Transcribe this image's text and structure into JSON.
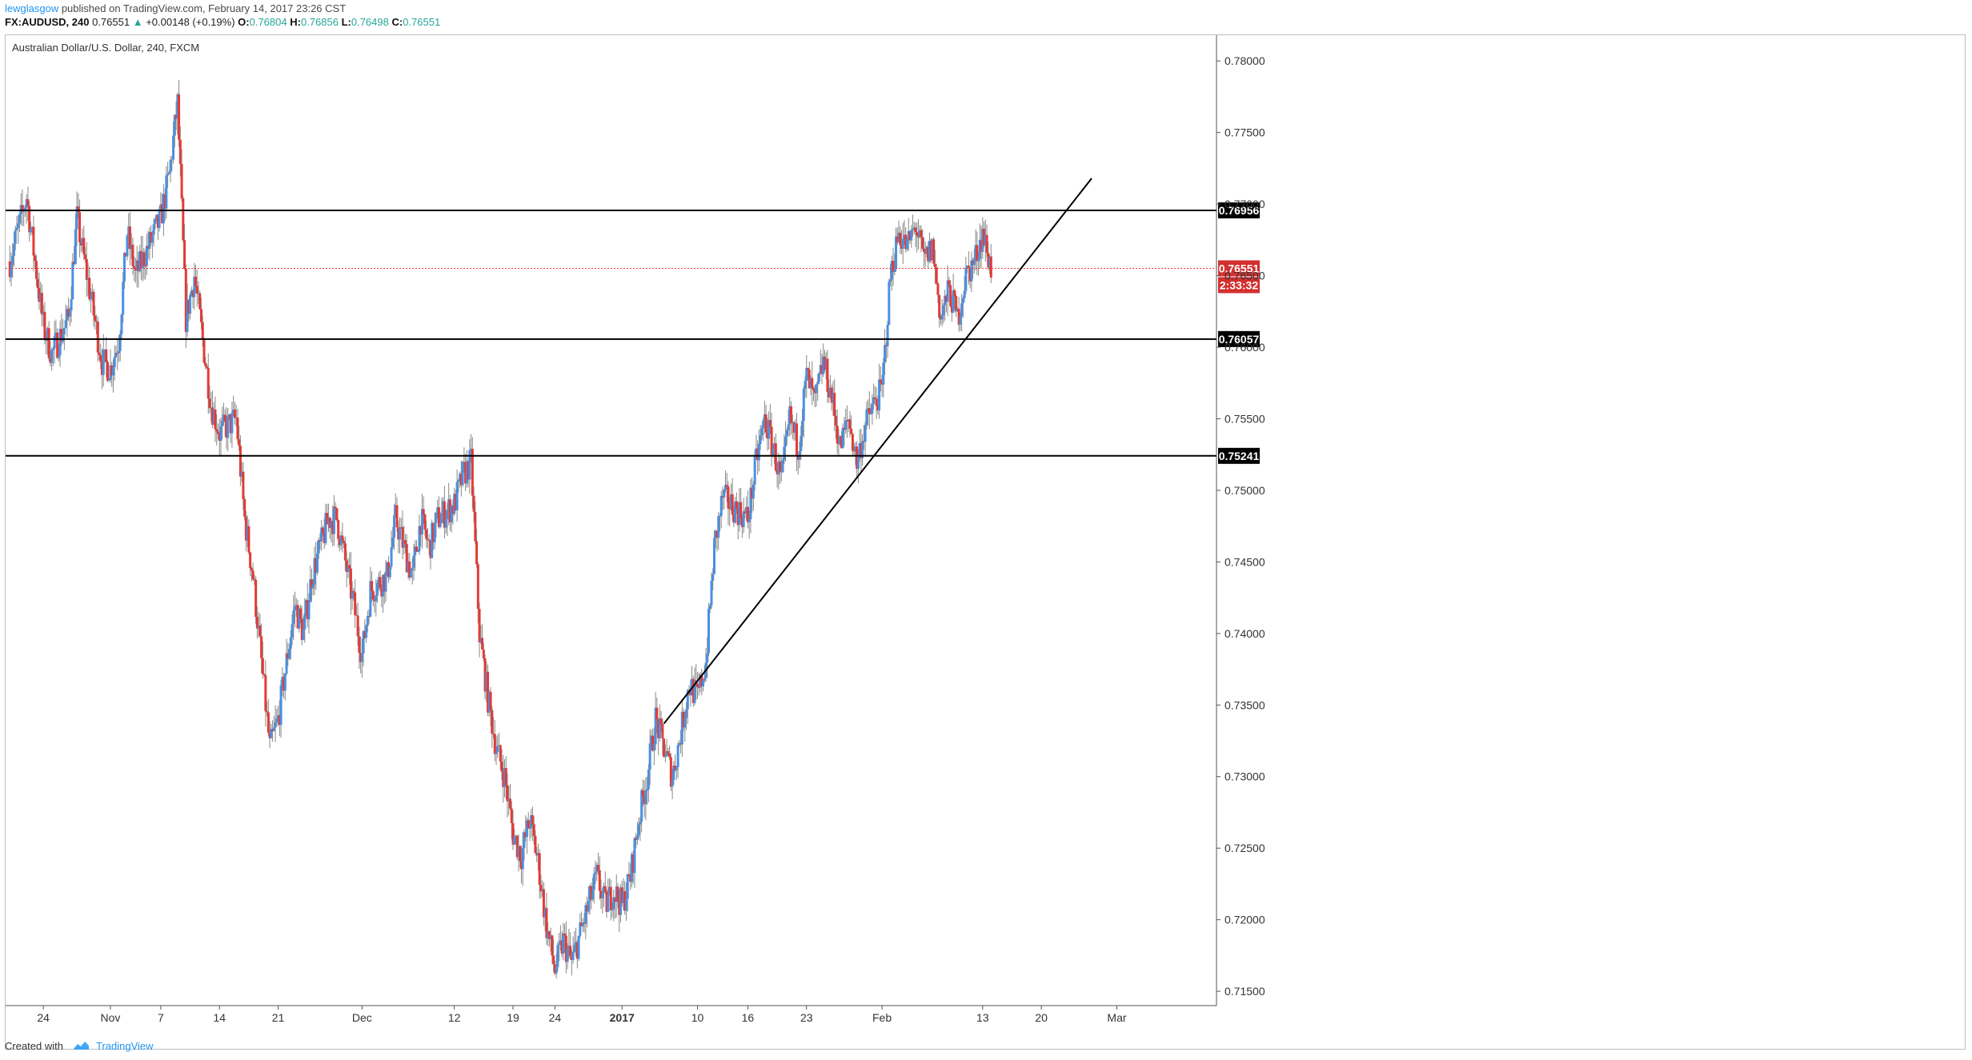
{
  "header": {
    "author": "lewglasgow",
    "published_text": "published on TradingView.com, February 14, 2017 23:26 CST",
    "symbol_line": {
      "symbol": "FX:AUDUSD, 240",
      "last": "0.76551",
      "change": "+0.00148 (+0.19%)",
      "open_label": "O:",
      "open": "0.76804",
      "high_label": "H:",
      "high": "0.76856",
      "low_label": "L:",
      "low": "0.76498",
      "close_label": "C:",
      "close": "0.76551"
    }
  },
  "footer": {
    "created_with": "Created with",
    "brand": "TradingView"
  },
  "colors": {
    "up": "#4a90e2",
    "down": "#e53935",
    "price_line": "#e53935",
    "level_line": "#000000",
    "label_bg_level": "#000000",
    "label_bg_price": "#d32f2f"
  },
  "chart_data": {
    "type": "candlestick",
    "title": "Australian Dollar/U.S. Dollar, 240, FXCM",
    "ylim": [
      0.714,
      0.7818
    ],
    "y_ticks": [
      "0.78000",
      "0.77500",
      "0.77000",
      "0.76500",
      "0.76000",
      "0.75500",
      "0.75000",
      "0.74500",
      "0.74000",
      "0.73500",
      "0.73000",
      "0.72500",
      "0.72000",
      "0.71500"
    ],
    "y_tick_values": [
      0.78,
      0.775,
      0.77,
      0.765,
      0.76,
      0.755,
      0.75,
      0.745,
      0.74,
      0.735,
      0.73,
      0.725,
      0.72,
      0.715
    ],
    "x_ticks": [
      {
        "label": "24",
        "date": "2016-10-24"
      },
      {
        "label": "Nov",
        "date": "2016-11-01"
      },
      {
        "label": "7",
        "date": "2016-11-07"
      },
      {
        "label": "14",
        "date": "2016-11-14"
      },
      {
        "label": "21",
        "date": "2016-11-21"
      },
      {
        "label": "Dec",
        "date": "2016-12-01"
      },
      {
        "label": "12",
        "date": "2016-12-12"
      },
      {
        "label": "19",
        "date": "2016-12-19"
      },
      {
        "label": "24",
        "date": "2016-12-24"
      },
      {
        "label": "2017",
        "date": "2017-01-01"
      },
      {
        "label": "10",
        "date": "2017-01-10"
      },
      {
        "label": "16",
        "date": "2017-01-16"
      },
      {
        "label": "23",
        "date": "2017-01-23"
      },
      {
        "label": "Feb",
        "date": "2017-02-01"
      },
      {
        "label": "13",
        "date": "2017-02-13"
      },
      {
        "label": "20",
        "date": "2017-02-20"
      },
      {
        "label": "Mar",
        "date": "2017-03-01"
      }
    ],
    "horizontal_levels": [
      {
        "value": 0.76956,
        "label": "0.76956"
      },
      {
        "value": 0.76057,
        "label": "0.76057"
      },
      {
        "value": 0.75241,
        "label": "0.75241"
      }
    ],
    "last_price": {
      "value": 0.76551,
      "label": "0.76551",
      "countdown": "2:33:32"
    },
    "trendline": {
      "from": {
        "date": "2017-01-06",
        "price": 0.7337
      },
      "to": {
        "date": "2017-02-26",
        "price": 0.7718
      }
    },
    "close_path": [
      {
        "date": "2016-10-20",
        "price": 0.766
      },
      {
        "date": "2016-10-22",
        "price": 0.7705
      },
      {
        "date": "2016-10-24",
        "price": 0.7615
      },
      {
        "date": "2016-10-25",
        "price": 0.7595
      },
      {
        "date": "2016-10-27",
        "price": 0.762
      },
      {
        "date": "2016-10-28",
        "price": 0.769
      },
      {
        "date": "2016-10-31",
        "price": 0.759
      },
      {
        "date": "2016-11-01",
        "price": 0.7585
      },
      {
        "date": "2016-11-02",
        "price": 0.7605
      },
      {
        "date": "2016-11-03",
        "price": 0.768
      },
      {
        "date": "2016-11-04",
        "price": 0.765
      },
      {
        "date": "2016-11-07",
        "price": 0.769
      },
      {
        "date": "2016-11-08",
        "price": 0.772
      },
      {
        "date": "2016-11-09",
        "price": 0.777
      },
      {
        "date": "2016-11-10",
        "price": 0.762
      },
      {
        "date": "2016-11-11",
        "price": 0.765
      },
      {
        "date": "2016-11-13",
        "price": 0.756
      },
      {
        "date": "2016-11-14",
        "price": 0.754
      },
      {
        "date": "2016-11-16",
        "price": 0.755
      },
      {
        "date": "2016-11-17",
        "price": 0.748
      },
      {
        "date": "2016-11-18",
        "price": 0.744
      },
      {
        "date": "2016-11-20",
        "price": 0.732
      },
      {
        "date": "2016-11-21",
        "price": 0.734
      },
      {
        "date": "2016-11-23",
        "price": 0.742
      },
      {
        "date": "2016-11-24",
        "price": 0.74
      },
      {
        "date": "2016-11-25",
        "price": 0.744
      },
      {
        "date": "2016-11-27",
        "price": 0.748
      },
      {
        "date": "2016-11-28",
        "price": 0.748
      },
      {
        "date": "2016-11-30",
        "price": 0.742
      },
      {
        "date": "2016-12-01",
        "price": 0.7385
      },
      {
        "date": "2016-12-02",
        "price": 0.743
      },
      {
        "date": "2016-12-04",
        "price": 0.744
      },
      {
        "date": "2016-12-05",
        "price": 0.748
      },
      {
        "date": "2016-12-07",
        "price": 0.744
      },
      {
        "date": "2016-12-08",
        "price": 0.748
      },
      {
        "date": "2016-12-09",
        "price": 0.746
      },
      {
        "date": "2016-12-10",
        "price": 0.748
      },
      {
        "date": "2016-12-12",
        "price": 0.749
      },
      {
        "date": "2016-12-13",
        "price": 0.751
      },
      {
        "date": "2016-12-14",
        "price": 0.752
      },
      {
        "date": "2016-12-15",
        "price": 0.74
      },
      {
        "date": "2016-12-16",
        "price": 0.7355
      },
      {
        "date": "2016-12-17",
        "price": 0.732
      },
      {
        "date": "2016-12-18",
        "price": 0.73
      },
      {
        "date": "2016-12-19",
        "price": 0.726
      },
      {
        "date": "2016-12-20",
        "price": 0.7245
      },
      {
        "date": "2016-12-21",
        "price": 0.727
      },
      {
        "date": "2016-12-22",
        "price": 0.724
      },
      {
        "date": "2016-12-23",
        "price": 0.7195
      },
      {
        "date": "2016-12-24",
        "price": 0.7165
      },
      {
        "date": "2016-12-25",
        "price": 0.7185
      },
      {
        "date": "2016-12-26",
        "price": 0.717
      },
      {
        "date": "2016-12-27",
        "price": 0.719
      },
      {
        "date": "2016-12-28",
        "price": 0.721
      },
      {
        "date": "2016-12-29",
        "price": 0.723
      },
      {
        "date": "2016-12-30",
        "price": 0.721
      },
      {
        "date": "2016-12-31",
        "price": 0.722
      },
      {
        "date": "2017-01-01",
        "price": 0.721
      },
      {
        "date": "2017-01-02",
        "price": 0.723
      },
      {
        "date": "2017-01-03",
        "price": 0.727
      },
      {
        "date": "2017-01-04",
        "price": 0.73
      },
      {
        "date": "2017-01-05",
        "price": 0.734
      },
      {
        "date": "2017-01-06",
        "price": 0.732
      },
      {
        "date": "2017-01-07",
        "price": 0.73
      },
      {
        "date": "2017-01-08",
        "price": 0.733
      },
      {
        "date": "2017-01-09",
        "price": 0.7365
      },
      {
        "date": "2017-01-10",
        "price": 0.7355
      },
      {
        "date": "2017-01-11",
        "price": 0.738
      },
      {
        "date": "2017-01-12",
        "price": 0.746
      },
      {
        "date": "2017-01-13",
        "price": 0.7495
      },
      {
        "date": "2017-01-14",
        "price": 0.749
      },
      {
        "date": "2017-01-15",
        "price": 0.7485
      },
      {
        "date": "2017-01-16",
        "price": 0.748
      },
      {
        "date": "2017-01-17",
        "price": 0.752
      },
      {
        "date": "2017-01-18",
        "price": 0.755
      },
      {
        "date": "2017-01-19",
        "price": 0.753
      },
      {
        "date": "2017-01-20",
        "price": 0.7505
      },
      {
        "date": "2017-01-21",
        "price": 0.755
      },
      {
        "date": "2017-01-22",
        "price": 0.753
      },
      {
        "date": "2017-01-23",
        "price": 0.758
      },
      {
        "date": "2017-01-24",
        "price": 0.756
      },
      {
        "date": "2017-01-25",
        "price": 0.759
      },
      {
        "date": "2017-01-26",
        "price": 0.7565
      },
      {
        "date": "2017-01-27",
        "price": 0.753
      },
      {
        "date": "2017-01-28",
        "price": 0.755
      },
      {
        "date": "2017-01-29",
        "price": 0.752
      },
      {
        "date": "2017-01-30",
        "price": 0.7545
      },
      {
        "date": "2017-01-31",
        "price": 0.756
      },
      {
        "date": "2017-02-01",
        "price": 0.757
      },
      {
        "date": "2017-02-02",
        "price": 0.765
      },
      {
        "date": "2017-02-03",
        "price": 0.768
      },
      {
        "date": "2017-02-04",
        "price": 0.767
      },
      {
        "date": "2017-02-05",
        "price": 0.7685
      },
      {
        "date": "2017-02-06",
        "price": 0.766
      },
      {
        "date": "2017-02-07",
        "price": 0.767
      },
      {
        "date": "2017-02-08",
        "price": 0.762
      },
      {
        "date": "2017-02-09",
        "price": 0.764
      },
      {
        "date": "2017-02-10",
        "price": 0.762
      },
      {
        "date": "2017-02-11",
        "price": 0.765
      },
      {
        "date": "2017-02-12",
        "price": 0.766
      },
      {
        "date": "2017-02-13",
        "price": 0.768
      },
      {
        "date": "2017-02-14",
        "price": 0.7655
      }
    ]
  }
}
